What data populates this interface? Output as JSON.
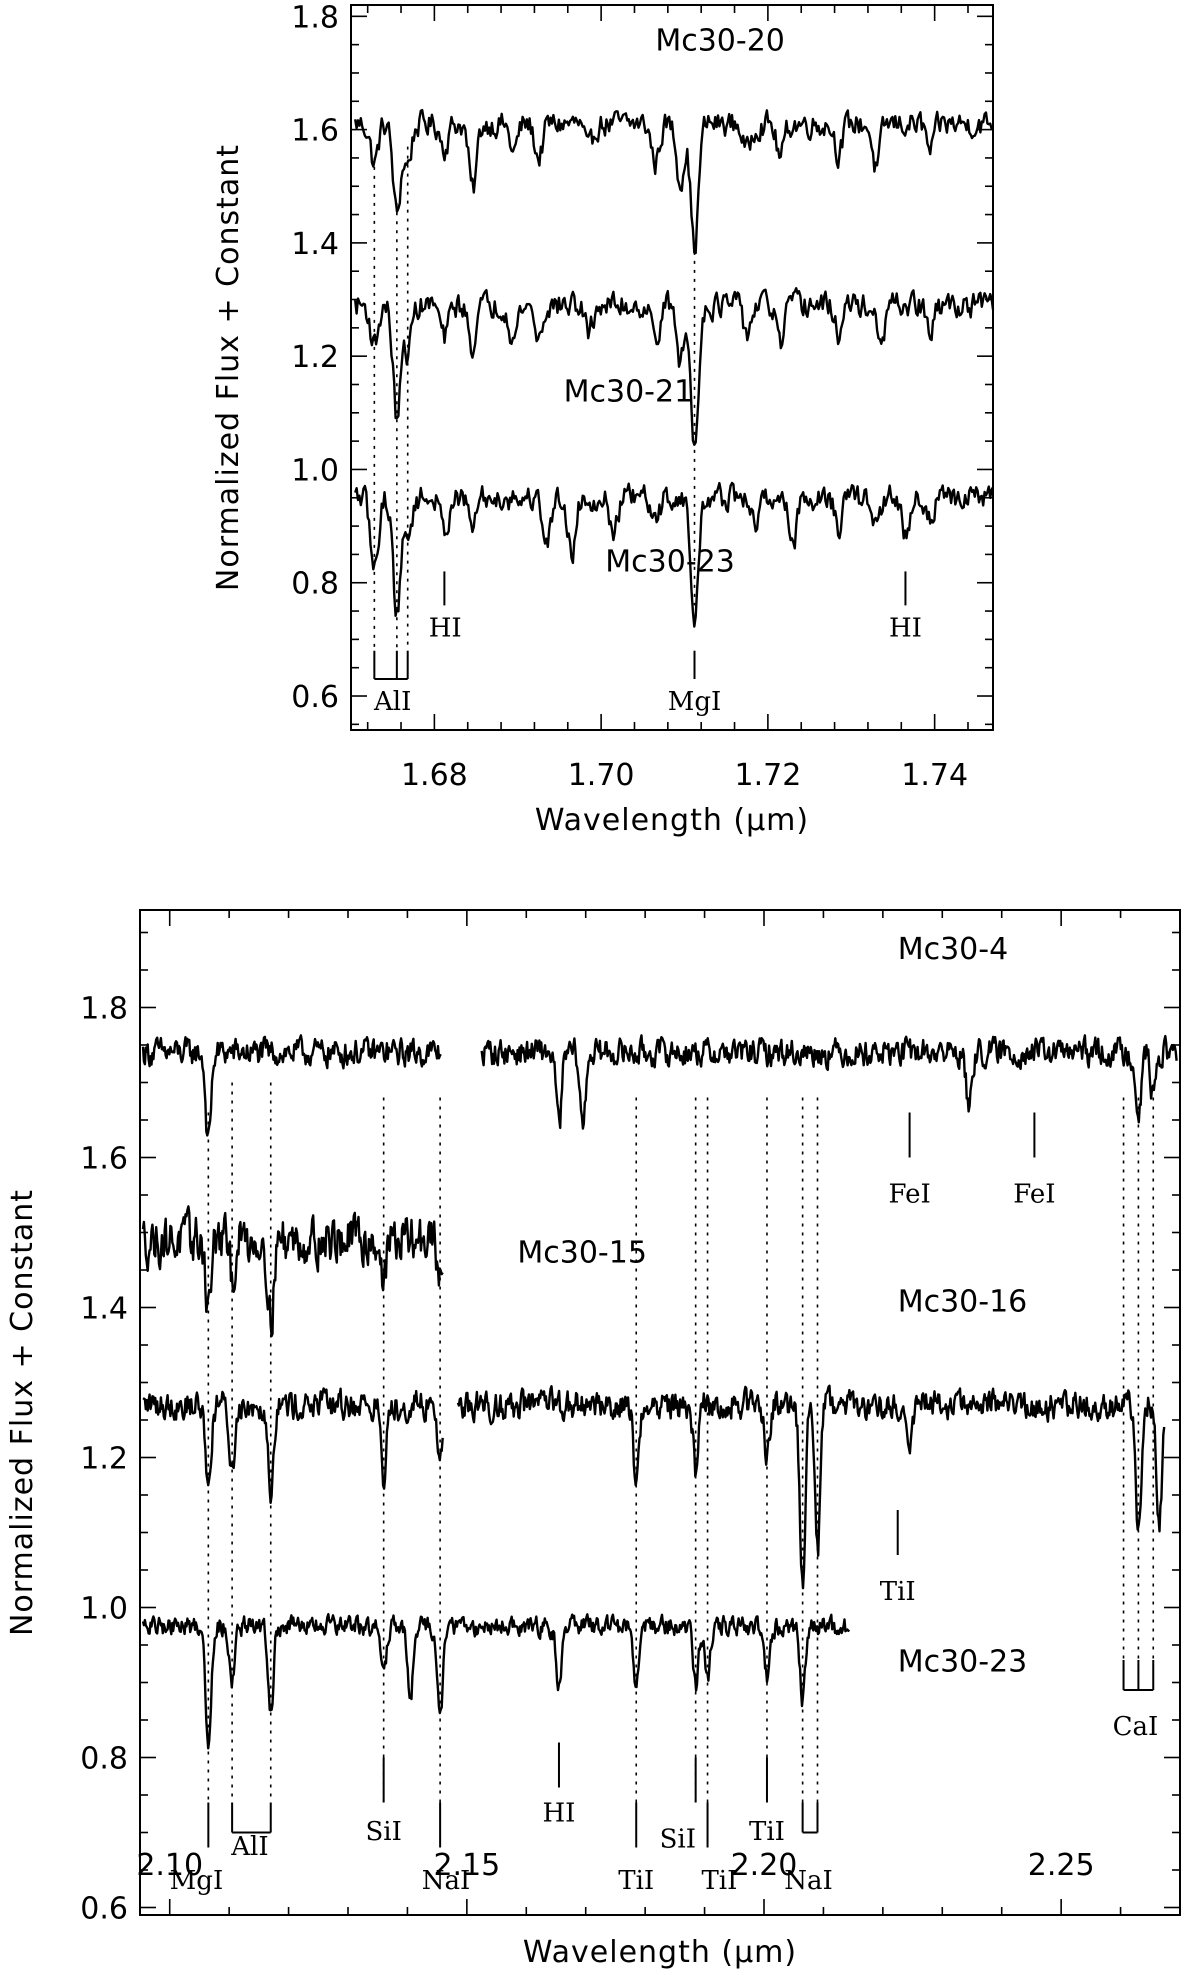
{
  "chart_data": [
    {
      "type": "line",
      "xlabel": "Wavelength (μm)",
      "ylabel": "Normalized Flux + Constant",
      "xlim": [
        1.67,
        1.747
      ],
      "ylim": [
        0.54,
        1.82
      ],
      "xticks": [
        1.68,
        1.7,
        1.72,
        1.74
      ],
      "xtick_labels": [
        "1.68",
        "1.70",
        "1.72",
        "1.74"
      ],
      "yticks": [
        0.6,
        0.8,
        1.0,
        1.2,
        1.4,
        1.6,
        1.8
      ],
      "ytick_labels": [
        "0.6",
        "0.8",
        "1.0",
        "1.2",
        "1.4",
        "1.6",
        "1.8"
      ],
      "series": [
        {
          "name": "Mc30-20",
          "level": 1.61,
          "noise": 0.035,
          "segments": [
            [
              1.6705,
              1.747
            ]
          ],
          "lines": [
            [
              1.6728,
              0.07
            ],
            [
              1.6755,
              0.16
            ],
            [
              1.6768,
              0.07
            ],
            [
              1.6812,
              0.04
            ],
            [
              1.6846,
              0.12
            ],
            [
              1.6895,
              0.05
            ],
            [
              1.6925,
              0.06
            ],
            [
              1.6985,
              0.05
            ],
            [
              1.7065,
              0.07
            ],
            [
              1.7095,
              0.1
            ],
            [
              1.7112,
              0.22
            ],
            [
              1.7175,
              0.05
            ],
            [
              1.7215,
              0.06
            ],
            [
              1.7285,
              0.05
            ],
            [
              1.733,
              0.08
            ],
            [
              1.7395,
              0.05
            ]
          ],
          "label": {
            "text": "Mc30-20",
            "x": 1.7065,
            "y": 1.74
          }
        },
        {
          "name": "Mc30-21",
          "level": 1.29,
          "noise": 0.035,
          "segments": [
            [
              1.6705,
              1.747
            ]
          ],
          "lines": [
            [
              1.6728,
              0.07
            ],
            [
              1.6755,
              0.2
            ],
            [
              1.6768,
              0.08
            ],
            [
              1.6812,
              0.06
            ],
            [
              1.6845,
              0.07
            ],
            [
              1.6895,
              0.06
            ],
            [
              1.6925,
              0.06
            ],
            [
              1.6985,
              0.05
            ],
            [
              1.7065,
              0.06
            ],
            [
              1.7095,
              0.1
            ],
            [
              1.7112,
              0.25
            ],
            [
              1.7175,
              0.05
            ],
            [
              1.7215,
              0.07
            ],
            [
              1.7285,
              0.05
            ],
            [
              1.7335,
              0.08
            ],
            [
              1.7395,
              0.05
            ]
          ],
          "label": {
            "text": "Mc30-21",
            "x": 1.6955,
            "y": 1.12
          }
        },
        {
          "name": "Mc30-23",
          "level": 0.95,
          "noise": 0.035,
          "segments": [
            [
              1.6705,
              1.747
            ]
          ],
          "lines": [
            [
              1.6728,
              0.13
            ],
            [
              1.6755,
              0.2
            ],
            [
              1.6768,
              0.07
            ],
            [
              1.6812,
              0.06
            ],
            [
              1.6845,
              0.05
            ],
            [
              1.6935,
              0.08
            ],
            [
              1.6965,
              0.1
            ],
            [
              1.7015,
              0.06
            ],
            [
              1.7065,
              0.05
            ],
            [
              1.7112,
              0.22
            ],
            [
              1.7185,
              0.05
            ],
            [
              1.723,
              0.08
            ],
            [
              1.7285,
              0.05
            ],
            [
              1.733,
              0.05
            ],
            [
              1.7365,
              0.07
            ],
            [
              1.7395,
              0.04
            ]
          ],
          "label": {
            "text": "Mc30-23",
            "x": 1.7005,
            "y": 0.82
          }
        }
      ],
      "guides": [
        {
          "x": 1.6728,
          "y1": 1.55,
          "y2": 0.68
        },
        {
          "x": 1.6755,
          "y1": 1.47,
          "y2": 0.68
        },
        {
          "x": 1.6768,
          "y1": 1.57,
          "y2": 0.68
        },
        {
          "x": 1.7112,
          "y1": 1.4,
          "y2": 0.76
        }
      ],
      "annotations": [
        {
          "text": "AlI",
          "kind": "bracket",
          "xs": [
            1.6728,
            1.6755,
            1.6768
          ],
          "y_top": 0.68,
          "y_base": 0.63,
          "label_x": 1.675,
          "label_y": 0.575
        },
        {
          "text": "HI",
          "kind": "tick",
          "x": 1.6812,
          "y_top": 0.82,
          "y_bottom": 0.76,
          "label_x": 1.6813,
          "label_y": 0.705
        },
        {
          "text": "MgI",
          "kind": "tick",
          "x": 1.7112,
          "y_top": 0.68,
          "y_bottom": 0.63,
          "label_x": 1.7112,
          "label_y": 0.575
        },
        {
          "text": "HI",
          "kind": "tick",
          "x": 1.7365,
          "y_top": 0.82,
          "y_bottom": 0.76,
          "label_x": 1.7365,
          "label_y": 0.705
        }
      ]
    },
    {
      "type": "line",
      "xlabel": "Wavelength (μm)",
      "ylabel": "Normalized Flux + Constant",
      "xlim": [
        2.095,
        2.27
      ],
      "ylim": [
        0.59,
        1.93
      ],
      "xticks": [
        2.1,
        2.15,
        2.2,
        2.25
      ],
      "xtick_labels": [
        "2.10",
        "2.15",
        "2.20",
        "2.25"
      ],
      "yticks": [
        0.6,
        0.8,
        1.0,
        1.2,
        1.4,
        1.6,
        1.8
      ],
      "ytick_labels": [
        "0.6",
        "0.8",
        "1.0",
        "1.2",
        "1.4",
        "1.6",
        "1.8"
      ],
      "series": [
        {
          "name": "Mc30-4",
          "level": 1.74,
          "noise": 0.028,
          "segments": [
            [
              2.0955,
              2.1457
            ],
            [
              2.1525,
              2.2695
            ]
          ],
          "lines": [
            [
              2.1065,
              0.12
            ],
            [
              2.1695,
              0.1
            ],
            [
              2.1655,
              0.1
            ],
            [
              2.2345,
              0.08
            ],
            [
              2.263,
              0.08
            ],
            [
              2.2655,
              0.06
            ]
          ],
          "label": {
            "text": "Mc30-4",
            "x": 2.2225,
            "y": 1.865
          }
        },
        {
          "name": "Mc30-15",
          "level": 1.49,
          "noise": 0.05,
          "segments": [
            [
              2.0955,
              2.146
            ]
          ],
          "lines": [
            [
              2.1065,
              0.09
            ],
            [
              2.1105,
              0.05
            ],
            [
              2.117,
              0.11
            ],
            [
              2.136,
              0.05
            ],
            [
              2.1455,
              0.06
            ]
          ],
          "label": {
            "text": "Mc30-15",
            "x": 2.1585,
            "y": 1.46
          }
        },
        {
          "name": "Mc30-16",
          "level": 1.27,
          "noise": 0.03,
          "segments": [
            [
              2.0955,
              2.146
            ],
            [
              2.1485,
              2.2675
            ]
          ],
          "lines": [
            [
              2.1065,
              0.11
            ],
            [
              2.1105,
              0.09
            ],
            [
              2.117,
              0.11
            ],
            [
              2.136,
              0.1
            ],
            [
              2.1455,
              0.07
            ],
            [
              2.1785,
              0.11
            ],
            [
              2.1885,
              0.09
            ],
            [
              2.2005,
              0.06
            ],
            [
              2.2065,
              0.23
            ],
            [
              2.209,
              0.2
            ],
            [
              2.2245,
              0.06
            ],
            [
              2.263,
              0.18
            ],
            [
              2.2665,
              0.16
            ]
          ],
          "label": {
            "text": "Mc30-16",
            "x": 2.2225,
            "y": 1.395
          }
        },
        {
          "name": "Mc30-23",
          "level": 0.975,
          "noise": 0.02,
          "segments": [
            [
              2.0955,
              2.2145
            ]
          ],
          "lines": [
            [
              2.1065,
              0.16
            ],
            [
              2.1105,
              0.07
            ],
            [
              2.117,
              0.12
            ],
            [
              2.136,
              0.07
            ],
            [
              2.1405,
              0.1
            ],
            [
              2.1455,
              0.13
            ],
            [
              2.1655,
              0.08
            ],
            [
              2.1785,
              0.08
            ],
            [
              2.1885,
              0.08
            ],
            [
              2.1905,
              0.07
            ],
            [
              2.2005,
              0.07
            ],
            [
              2.2065,
              0.1
            ]
          ],
          "label": {
            "text": "Mc30-23",
            "x": 2.2225,
            "y": 0.915
          }
        }
      ],
      "guides": [
        {
          "x": 2.1065,
          "y1": 1.66,
          "y2": 0.74
        },
        {
          "x": 2.1105,
          "y1": 1.7,
          "y2": 0.74
        },
        {
          "x": 2.117,
          "y1": 1.7,
          "y2": 0.74
        },
        {
          "x": 2.136,
          "y1": 1.68,
          "y2": 0.74
        },
        {
          "x": 2.1455,
          "y1": 1.68,
          "y2": 0.74
        },
        {
          "x": 2.1785,
          "y1": 1.68,
          "y2": 0.74
        },
        {
          "x": 2.1885,
          "y1": 1.68,
          "y2": 0.74
        },
        {
          "x": 2.1905,
          "y1": 1.68,
          "y2": 0.74
        },
        {
          "x": 2.2005,
          "y1": 1.68,
          "y2": 0.74
        },
        {
          "x": 2.2065,
          "y1": 1.68,
          "y2": 0.74
        },
        {
          "x": 2.209,
          "y1": 1.68,
          "y2": 0.74
        },
        {
          "x": 2.2605,
          "y1": 1.68,
          "y2": 0.93
        },
        {
          "x": 2.263,
          "y1": 1.68,
          "y2": 0.93
        },
        {
          "x": 2.2655,
          "y1": 1.68,
          "y2": 0.93
        }
      ],
      "annotations": [
        {
          "text": "FeI",
          "kind": "tick",
          "x": 2.2245,
          "y_top": 1.66,
          "y_bottom": 1.6,
          "label_x": 2.2245,
          "label_y": 1.54
        },
        {
          "text": "FeI",
          "kind": "tick",
          "x": 2.2455,
          "y_top": 1.66,
          "y_bottom": 1.6,
          "label_x": 2.2455,
          "label_y": 1.54
        },
        {
          "text": "TiI",
          "kind": "tick",
          "x": 2.2225,
          "y_top": 1.13,
          "y_bottom": 1.07,
          "label_x": 2.2225,
          "label_y": 1.01
        },
        {
          "text": "CaI",
          "kind": "bracket",
          "xs": [
            2.2605,
            2.263,
            2.2655
          ],
          "y_top": 0.93,
          "y_bottom": 0.89,
          "label_x": 2.2625,
          "label_y": 0.83
        },
        {
          "text": "MgI",
          "kind": "tick",
          "x": 2.1065,
          "y_top": 0.74,
          "y_bottom": 0.68,
          "label_x": 2.1045,
          "label_y": 0.625
        },
        {
          "text": "AlI",
          "kind": "bracket",
          "xs": [
            2.1105,
            2.117
          ],
          "y_top": 0.74,
          "y_bottom": 0.7,
          "label_x": 2.1135,
          "label_y": 0.67
        },
        {
          "text": "SiI",
          "kind": "tick",
          "x": 2.136,
          "y_top": 0.8,
          "y_bottom": 0.74,
          "label_x": 2.136,
          "label_y": 0.69
        },
        {
          "text": "NaI",
          "kind": "tick",
          "x": 2.1455,
          "y_top": 0.74,
          "y_bottom": 0.68,
          "label_x": 2.1465,
          "label_y": 0.625
        },
        {
          "text": "HI",
          "kind": "tick",
          "x": 2.1655,
          "y_top": 0.82,
          "y_bottom": 0.76,
          "label_x": 2.1655,
          "label_y": 0.715
        },
        {
          "text": "TiI",
          "kind": "tick",
          "x": 2.1785,
          "y_top": 0.74,
          "y_bottom": 0.68,
          "label_x": 2.1785,
          "label_y": 0.625
        },
        {
          "text": "SiI",
          "kind": "tick",
          "x": 2.1885,
          "y_top": 0.8,
          "y_bottom": 0.74,
          "label_x": 2.1855,
          "label_y": 0.68
        },
        {
          "text": "TiI",
          "kind": "tick",
          "x": 2.1905,
          "y_top": 0.74,
          "y_bottom": 0.68,
          "label_x": 2.1925,
          "label_y": 0.625
        },
        {
          "text": "TiI",
          "kind": "tick",
          "x": 2.2005,
          "y_top": 0.8,
          "y_bottom": 0.74,
          "label_x": 2.2005,
          "label_y": 0.69
        },
        {
          "text": "NaI",
          "kind": "bracket",
          "xs": [
            2.2065,
            2.209
          ],
          "y_top": 0.74,
          "y_bottom": 0.7,
          "label_x": 2.2075,
          "label_y": 0.625
        }
      ]
    }
  ]
}
